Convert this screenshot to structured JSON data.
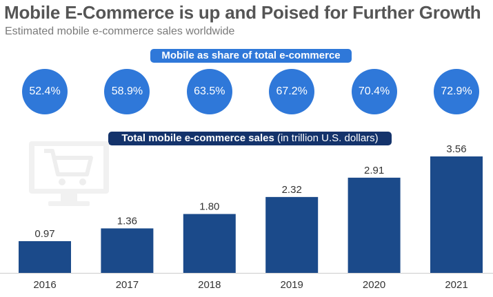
{
  "title": "Mobile E-Commerce is up and Poised for Further Growth",
  "subtitle": "Estimated mobile e-commerce sales worldwide",
  "share_label": "Mobile as share of total e-commerce",
  "sales_label_bold": "Total mobile e-commerce sales",
  "sales_label_unit": "(in trillion U.S. dollars)",
  "icon": "shopping-cart-monitor-icon",
  "colors": {
    "bar": "#1b4a8a",
    "circle": "#2f78d9",
    "sales_pill": "#14336b",
    "title": "#555555"
  },
  "chart_data": {
    "type": "bar",
    "categories": [
      "2016",
      "2017",
      "2018",
      "2019",
      "2020",
      "2021"
    ],
    "values": [
      0.97,
      1.36,
      1.8,
      2.32,
      2.91,
      3.56
    ],
    "value_labels": [
      "0.97",
      "1.36",
      "1.80",
      "2.32",
      "2.91",
      "3.56"
    ],
    "share_of_total": [
      "52.4%",
      "58.9%",
      "63.5%",
      "67.2%",
      "70.4%",
      "72.9%"
    ],
    "title": "Mobile E-Commerce is up and Poised for Further Growth",
    "subtitle": "Estimated mobile e-commerce sales worldwide",
    "ylabel": "Total mobile e-commerce sales (in trillion U.S. dollars)",
    "ylim": [
      0,
      3.56
    ],
    "grid": false
  }
}
